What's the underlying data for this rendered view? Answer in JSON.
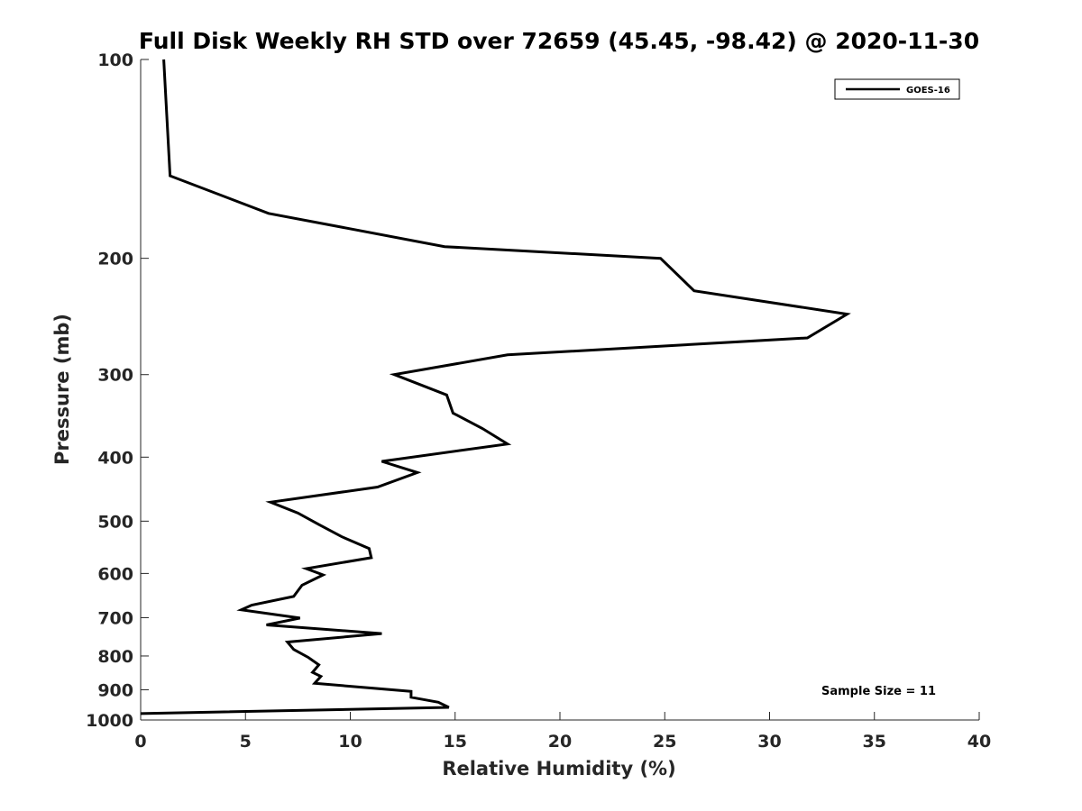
{
  "chart_data": {
    "type": "line",
    "title": "Full Disk Weekly RH STD over 72659 (45.45, -98.42) @ 2020-11-30",
    "xlabel": "Relative Humidity (%)",
    "ylabel": "Pressure (mb)",
    "xlim": [
      0,
      40
    ],
    "ylim": [
      100,
      1000
    ],
    "yscale": "log",
    "y_reversed": true,
    "xticks": [
      0,
      5,
      10,
      15,
      20,
      25,
      30,
      35,
      40
    ],
    "xtick_labels": [
      "0",
      "5",
      "10",
      "15",
      "20",
      "25",
      "30",
      "35",
      "40"
    ],
    "yticks": [
      100,
      200,
      300,
      400,
      500,
      600,
      700,
      800,
      900,
      1000
    ],
    "ytick_labels": [
      "100",
      "200",
      "300",
      "400",
      "500",
      "600",
      "700",
      "800",
      "900",
      "1000"
    ],
    "grid": false,
    "legend_position": "top-right",
    "series": [
      {
        "name": "GOES-16",
        "color": "#000000",
        "points": [
          [
            1.1,
            100
          ],
          [
            1.4,
            150
          ],
          [
            6.1,
            171
          ],
          [
            14.5,
            192
          ],
          [
            24.8,
            200
          ],
          [
            26.4,
            224
          ],
          [
            33.7,
            243
          ],
          [
            31.8,
            264
          ],
          [
            17.5,
            280
          ],
          [
            12.1,
            300
          ],
          [
            14.6,
            322
          ],
          [
            14.9,
            343
          ],
          [
            16.3,
            362
          ],
          [
            17.5,
            382
          ],
          [
            11.5,
            406
          ],
          [
            13.2,
            422
          ],
          [
            11.3,
            444
          ],
          [
            6.2,
            468
          ],
          [
            7.5,
            486
          ],
          [
            8.5,
            506
          ],
          [
            9.6,
            528
          ],
          [
            10.9,
            550
          ],
          [
            11.0,
            568
          ],
          [
            7.9,
            590
          ],
          [
            8.7,
            603
          ],
          [
            7.7,
            625
          ],
          [
            7.3,
            650
          ],
          [
            5.3,
            670
          ],
          [
            4.8,
            681
          ],
          [
            7.6,
            701
          ],
          [
            6.0,
            718
          ],
          [
            11.5,
            740
          ],
          [
            7.0,
            762
          ],
          [
            7.3,
            782
          ],
          [
            8.0,
            804
          ],
          [
            8.5,
            825
          ],
          [
            8.2,
            847
          ],
          [
            8.6,
            859
          ],
          [
            8.3,
            880
          ],
          [
            12.9,
            905
          ],
          [
            12.9,
            924
          ],
          [
            14.2,
            940
          ],
          [
            14.7,
            957
          ],
          [
            0.0,
            978
          ]
        ]
      }
    ],
    "annotations": [
      "Sample Size = 11"
    ]
  }
}
